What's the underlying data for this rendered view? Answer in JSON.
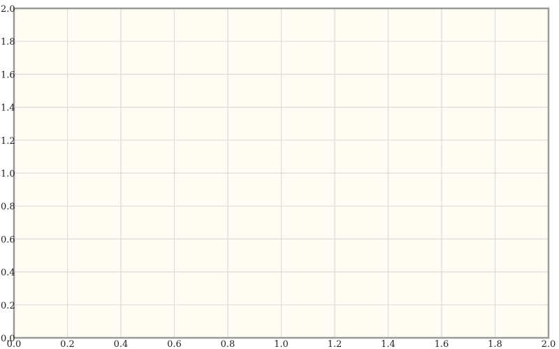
{
  "chart_data": {
    "type": "scatter",
    "title": "",
    "xlabel": "",
    "ylabel": "",
    "xlim": [
      0,
      2
    ],
    "ylim": [
      0,
      2
    ],
    "x_ticks": [
      "0.0",
      "0.2",
      "0.4",
      "0.6",
      "0.8",
      "1.0",
      "1.2",
      "1.4",
      "1.6",
      "1.8",
      "2.0"
    ],
    "y_ticks": [
      "0.0",
      "0.2",
      "0.4",
      "0.6",
      "0.8",
      "1.0",
      "1.2",
      "1.4",
      "1.6",
      "1.8",
      "2.0"
    ],
    "grid": true,
    "series": [],
    "colors": {
      "plot_background": "#fffcf4",
      "grid": "#dcdcdc",
      "frame": "#9a9a9a"
    }
  }
}
